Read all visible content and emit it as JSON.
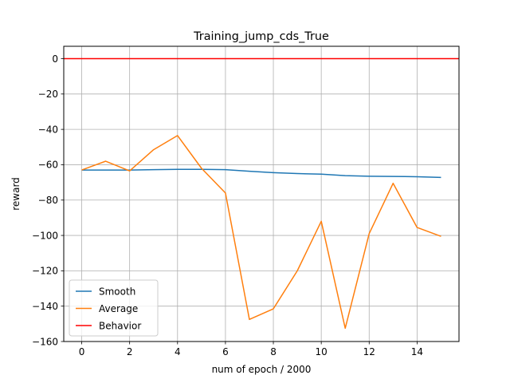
{
  "chart_data": {
    "type": "line",
    "title": "Training_jump_cds_True",
    "xlabel": "num of epoch / 2000",
    "ylabel": "reward",
    "xlim": [
      -0.75,
      15.75
    ],
    "ylim": [
      -160,
      7
    ],
    "xticks": [
      0,
      2,
      4,
      6,
      8,
      10,
      12,
      14
    ],
    "yticks": [
      0,
      -20,
      -40,
      -60,
      -80,
      -100,
      -120,
      -140,
      -160
    ],
    "xtick_labels": [
      "0",
      "2",
      "4",
      "6",
      "8",
      "10",
      "12",
      "14"
    ],
    "ytick_labels": [
      "0",
      "−20",
      "−40",
      "−60",
      "−80",
      "−100",
      "−120",
      "−140",
      "−160"
    ],
    "grid": true,
    "legend_position": "lower-left",
    "x": [
      0,
      1,
      2,
      3,
      4,
      5,
      6,
      7,
      8,
      9,
      10,
      11,
      12,
      13,
      14,
      15
    ],
    "series": [
      {
        "name": "Smooth",
        "color": "#1f77b4",
        "values": [
          -63,
          -63,
          -63,
          -62.8,
          -62.6,
          -62.6,
          -62.8,
          -63.7,
          -64.5,
          -65,
          -65.3,
          -66.2,
          -66.5,
          -66.6,
          -66.8,
          -67.2
        ]
      },
      {
        "name": "Average",
        "color": "#ff7f0e",
        "values": [
          -63,
          -58,
          -63.5,
          -51.5,
          -43.5,
          -62,
          -76,
          -147.5,
          -141.5,
          -120,
          -92,
          -152.5,
          -99,
          -70.5,
          -95.5,
          -100.5
        ]
      },
      {
        "name": "Behavior",
        "color": "#ff0000",
        "hline": 0
      }
    ]
  }
}
